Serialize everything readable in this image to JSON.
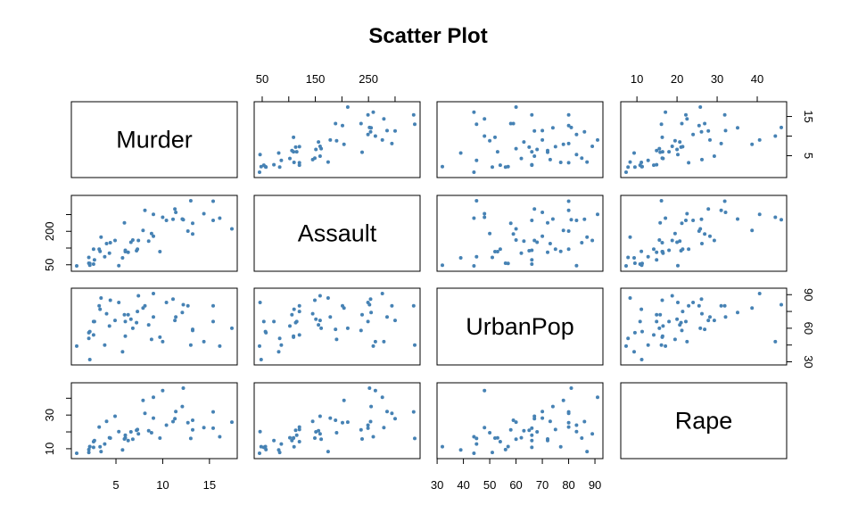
{
  "chart_data": {
    "type": "scatter",
    "title": "Scatter Plot",
    "variables": [
      "Murder",
      "Assault",
      "UrbanPop",
      "Rape"
    ],
    "point_color": "#4682b4",
    "ranges": {
      "Murder": [
        0.8,
        17.4
      ],
      "Assault": [
        45,
        337
      ],
      "UrbanPop": [
        32,
        91
      ],
      "Rape": [
        7.3,
        46
      ]
    },
    "ticks": {
      "Murder": [
        5,
        10,
        15
      ],
      "Assault": [
        50,
        100,
        150,
        200,
        250,
        300
      ],
      "UrbanPop": [
        30,
        40,
        50,
        60,
        70,
        80,
        90
      ],
      "Rape": [
        10,
        20,
        30,
        40
      ]
    },
    "tick_labels": {
      "Murder": [
        "5",
        "10",
        "15"
      ],
      "Assault": [
        "50",
        "",
        "150",
        "",
        "250",
        ""
      ],
      "UrbanPop": [
        "30",
        "40",
        "50",
        "60",
        "70",
        "80",
        "90"
      ],
      "Rape": [
        "10",
        "20",
        "30",
        "40"
      ]
    },
    "tick_labels_left": {
      "Assault": [
        "50",
        "",
        "200",
        ""
      ],
      "Rape": [
        "10",
        "",
        "30",
        ""
      ]
    },
    "tick_values_left": {
      "Assault": [
        50,
        125,
        200,
        275
      ],
      "Rape": [
        10,
        20,
        30,
        40
      ]
    },
    "tick_labels_right": {
      "Murder": [
        "5",
        "",
        "15"
      ],
      "UrbanPop": [
        "30",
        "",
        "60",
        "",
        "90"
      ]
    },
    "tick_values_right": {
      "Murder": [
        5,
        10,
        15
      ],
      "UrbanPop": [
        30,
        45,
        60,
        75,
        90
      ]
    },
    "points": [
      [
        13.2,
        236,
        58,
        21.2
      ],
      [
        10.0,
        263,
        48,
        44.5
      ],
      [
        8.1,
        294,
        80,
        31.0
      ],
      [
        8.8,
        190,
        50,
        19.5
      ],
      [
        9.0,
        276,
        91,
        40.6
      ],
      [
        7.9,
        204,
        78,
        38.7
      ],
      [
        3.3,
        110,
        77,
        11.1
      ],
      [
        5.9,
        238,
        72,
        15.8
      ],
      [
        15.4,
        335,
        80,
        31.9
      ],
      [
        17.4,
        211,
        60,
        25.8
      ],
      [
        5.3,
        46,
        83,
        20.2
      ],
      [
        2.6,
        120,
        54,
        14.2
      ],
      [
        10.4,
        249,
        83,
        24.0
      ],
      [
        7.2,
        113,
        65,
        21.0
      ],
      [
        2.2,
        56,
        57,
        11.3
      ],
      [
        6.0,
        115,
        66,
        18.0
      ],
      [
        9.7,
        109,
        52,
        16.3
      ],
      [
        15.4,
        249,
        66,
        22.2
      ],
      [
        2.1,
        83,
        51,
        7.8
      ],
      [
        11.3,
        300,
        67,
        27.8
      ],
      [
        4.4,
        149,
        85,
        16.3
      ],
      [
        12.1,
        255,
        74,
        35.1
      ],
      [
        2.7,
        72,
        66,
        14.9
      ],
      [
        16.1,
        259,
        44,
        17.1
      ],
      [
        9.0,
        178,
        70,
        28.2
      ],
      [
        6.0,
        109,
        53,
        16.4
      ],
      [
        4.3,
        102,
        62,
        16.5
      ],
      [
        12.2,
        252,
        81,
        46.0
      ],
      [
        2.1,
        57,
        56,
        9.5
      ],
      [
        7.4,
        159,
        89,
        18.8
      ],
      [
        11.4,
        285,
        70,
        32.1
      ],
      [
        11.1,
        254,
        86,
        26.1
      ],
      [
        13.0,
        337,
        45,
        16.1
      ],
      [
        0.8,
        45,
        44,
        7.3
      ],
      [
        7.3,
        120,
        75,
        21.4
      ],
      [
        6.6,
        151,
        68,
        20.0
      ],
      [
        4.9,
        159,
        67,
        29.3
      ],
      [
        6.3,
        106,
        72,
        14.9
      ],
      [
        3.4,
        174,
        87,
        8.3
      ],
      [
        14.4,
        279,
        48,
        22.5
      ],
      [
        3.8,
        86,
        45,
        12.8
      ],
      [
        13.2,
        188,
        59,
        26.9
      ],
      [
        12.7,
        201,
        80,
        25.5
      ],
      [
        3.2,
        120,
        80,
        22.9
      ],
      [
        2.2,
        48,
        32,
        11.2
      ],
      [
        8.5,
        156,
        63,
        20.7
      ],
      [
        4.0,
        145,
        73,
        26.2
      ],
      [
        5.7,
        81,
        39,
        9.3
      ],
      [
        2.6,
        53,
        66,
        10.8
      ],
      [
        6.8,
        161,
        60,
        15.6
      ]
    ]
  }
}
